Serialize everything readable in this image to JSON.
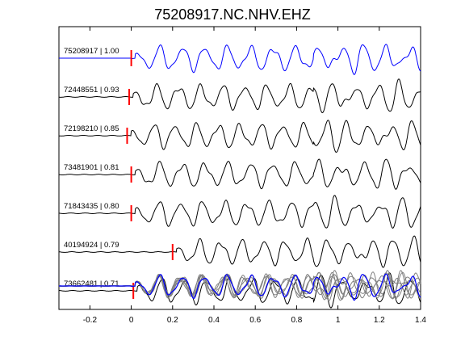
{
  "chart_data": {
    "type": "line",
    "title": "75208917.NC.NHV.EHZ",
    "xlabel": "",
    "ylabel": "",
    "xlim": [
      -0.35,
      1.4
    ],
    "x_ticks": [
      "-0.2",
      "0",
      "0.2",
      "0.4",
      "0.6",
      "0.8",
      "1",
      "1.2",
      "1.4"
    ],
    "x_tick_values": [
      -0.2,
      0,
      0.2,
      0.4,
      0.6,
      0.8,
      1.0,
      1.2,
      1.4
    ],
    "grid": false,
    "colors": {
      "reference": "#0000ff",
      "trace": "#000000",
      "stack": "#808080",
      "pick": "#ff0000"
    },
    "series": [
      {
        "name": "75208917 | 1.00",
        "pick_time": 0.0,
        "color": "reference"
      },
      {
        "name": "72448551 | 0.93",
        "pick_time": -0.01,
        "color": "trace"
      },
      {
        "name": "72198210 | 0.85",
        "pick_time": -0.02,
        "color": "trace"
      },
      {
        "name": "73481901 | 0.81",
        "pick_time": 0.0,
        "color": "trace"
      },
      {
        "name": "71843435 | 0.80",
        "pick_time": 0.0,
        "color": "trace"
      },
      {
        "name": "40194924 | 0.79",
        "pick_time": 0.2,
        "color": "trace"
      },
      {
        "name": "73662481 | 0.71",
        "pick_time": 0.01,
        "color": "trace"
      }
    ],
    "overlay": {
      "description_visible": false,
      "series_count": 7
    }
  }
}
